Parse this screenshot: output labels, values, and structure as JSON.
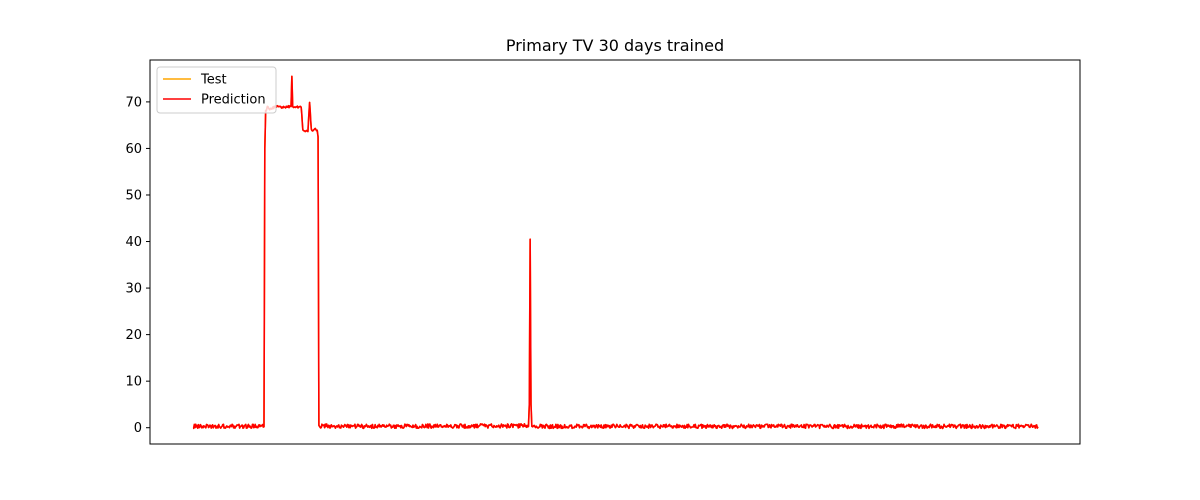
{
  "chart_data": {
    "type": "line",
    "title": "Primary TV 30 days trained",
    "xlabel": "",
    "ylabel": "",
    "xlim": [
      0,
      1000
    ],
    "ylim": [
      -3.5,
      79
    ],
    "yticks": [
      0,
      10,
      20,
      30,
      40,
      50,
      60,
      70
    ],
    "xticks_visible": false,
    "grid": false,
    "legend_position": "top-left",
    "colors": {
      "test": "#ffa500",
      "prediction": "#ff0000"
    },
    "series": [
      {
        "name": "Test",
        "color": "#ffa500",
        "x": [
          0,
          84,
          85,
          86,
          88,
          90,
          94,
          100,
          108,
          116,
          117,
          118,
          119,
          120,
          121,
          122,
          128,
          130,
          131,
          132,
          136,
          138,
          140,
          142,
          143,
          144,
          147,
          148,
          149,
          150,
          151,
          190,
          397,
          398,
          399,
          400,
          401,
          402,
          403,
          600,
          800,
          1000
        ],
        "y": [
          0.2,
          0.2,
          60,
          68,
          69,
          68.5,
          68.7,
          69,
          68.8,
          69,
          75.5,
          69,
          68.8,
          68.9,
          68.8,
          68.8,
          69,
          64,
          63.8,
          63.8,
          63.7,
          70,
          64,
          63.8,
          64,
          64.2,
          63.9,
          62.5,
          0.5,
          0.2,
          0.3,
          0.2,
          0.3,
          5,
          40.5,
          5,
          0.3,
          0.2,
          0.2,
          0.2,
          0.2,
          0.2
        ]
      },
      {
        "name": "Prediction",
        "color": "#ff0000",
        "x": [
          0,
          84,
          85,
          86,
          88,
          90,
          94,
          100,
          108,
          116,
          117,
          118,
          119,
          120,
          121,
          122,
          128,
          130,
          131,
          132,
          136,
          138,
          140,
          142,
          143,
          144,
          147,
          148,
          149,
          150,
          151,
          190,
          397,
          398,
          399,
          400,
          401,
          402,
          403,
          600,
          800,
          1000
        ],
        "y": [
          0.2,
          0.2,
          60,
          68,
          69,
          68.5,
          68.7,
          69,
          68.8,
          69,
          75.5,
          69,
          68.8,
          68.9,
          68.8,
          68.8,
          69,
          64,
          63.8,
          63.8,
          63.7,
          70,
          64,
          63.8,
          64,
          64.2,
          63.9,
          62.5,
          0.5,
          0.2,
          0.3,
          0.2,
          0.3,
          5,
          40.5,
          5,
          0.3,
          0.2,
          0.2,
          0.2,
          0.2,
          0.2
        ]
      }
    ]
  }
}
